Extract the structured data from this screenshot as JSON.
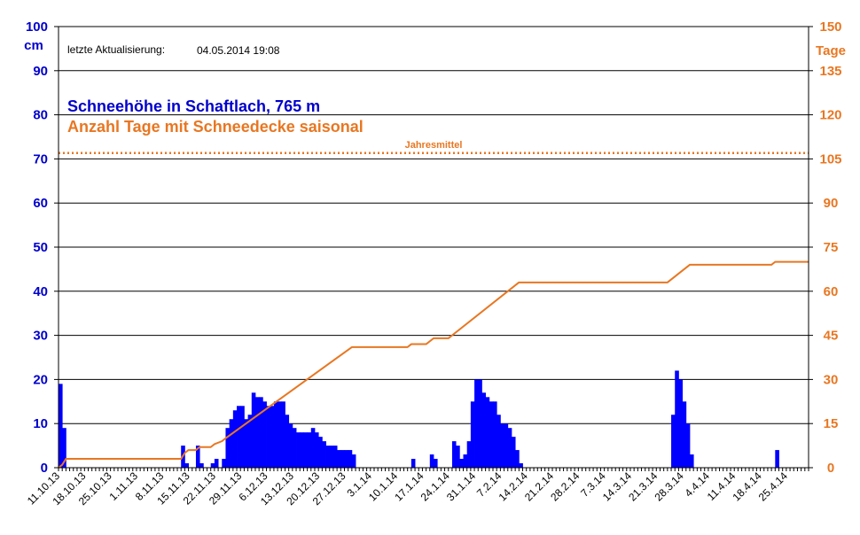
{
  "chart_data": {
    "type": "bar",
    "title": "Schneehöhe in Schaftlach, 765 m",
    "subtitle": "Anzahl Tage mit Schneedecke saisonal",
    "last_update_label": "letzte Aktualisierung:",
    "last_update_value": "04.05.2014 19:08",
    "ylabel_left": "cm",
    "ylabel_right": "Tage",
    "ylim_left": [
      0,
      100
    ],
    "ylim_right": [
      0,
      150
    ],
    "yticks_left": [
      0,
      10,
      20,
      30,
      40,
      50,
      60,
      70,
      80,
      90,
      100
    ],
    "yticks_right": [
      0,
      15,
      30,
      45,
      60,
      75,
      90,
      105,
      120,
      135,
      150
    ],
    "x_start": "11.10.13",
    "x_end": "01.05.14",
    "x_tick_labels": [
      "11.10.13",
      "18.10.13",
      "25.10.13",
      "1.11.13",
      "8.11.13",
      "15.11.13",
      "22.11.13",
      "29.11.13",
      "6.12.13",
      "13.12.13",
      "20.12.13",
      "27.12.13",
      "3.1.14",
      "10.1.14",
      "17.1.14",
      "24.1.14",
      "31.1.14",
      "7.2.14",
      "14.2.14",
      "21.2.14",
      "28.2.14",
      "7.3.14",
      "14.3.14",
      "21.3.14",
      "28.3.14",
      "4.4.14",
      "11.4.14",
      "18.4.14",
      "25.4.14"
    ],
    "grid": true,
    "series": [
      {
        "name": "Schneehöhe in Schaftlach, 765 m",
        "type": "bar",
        "axis": "left",
        "unit": "cm",
        "color": "#0000ff",
        "points": [
          [
            "11.10.13",
            19
          ],
          [
            "12.10.13",
            9
          ],
          [
            "13.11.13",
            5
          ],
          [
            "14.11.13",
            1
          ],
          [
            "17.11.13",
            5
          ],
          [
            "18.11.13",
            1
          ],
          [
            "21.11.13",
            1
          ],
          [
            "22.11.13",
            2
          ],
          [
            "24.11.13",
            2
          ],
          [
            "25.11.13",
            9
          ],
          [
            "26.11.13",
            11
          ],
          [
            "27.11.13",
            13
          ],
          [
            "28.11.13",
            14
          ],
          [
            "29.11.13",
            14
          ],
          [
            "30.11.13",
            11
          ],
          [
            "1.12.13",
            12
          ],
          [
            "2.12.13",
            17
          ],
          [
            "3.12.13",
            16
          ],
          [
            "4.12.13",
            16
          ],
          [
            "5.12.13",
            15
          ],
          [
            "6.12.13",
            14
          ],
          [
            "7.12.13",
            14
          ],
          [
            "8.12.13",
            15
          ],
          [
            "9.12.13",
            15
          ],
          [
            "10.12.13",
            15
          ],
          [
            "11.12.13",
            12
          ],
          [
            "12.12.13",
            10
          ],
          [
            "13.12.13",
            9
          ],
          [
            "14.12.13",
            8
          ],
          [
            "15.12.13",
            8
          ],
          [
            "16.12.13",
            8
          ],
          [
            "17.12.13",
            8
          ],
          [
            "18.12.13",
            9
          ],
          [
            "19.12.13",
            8
          ],
          [
            "20.12.13",
            7
          ],
          [
            "21.12.13",
            6
          ],
          [
            "22.12.13",
            5
          ],
          [
            "23.12.13",
            5
          ],
          [
            "24.12.13",
            5
          ],
          [
            "25.12.13",
            4
          ],
          [
            "26.12.13",
            4
          ],
          [
            "27.12.13",
            4
          ],
          [
            "28.12.13",
            4
          ],
          [
            "29.12.13",
            3
          ],
          [
            "14.1.14",
            2
          ],
          [
            "19.1.14",
            3
          ],
          [
            "20.1.14",
            2
          ],
          [
            "25.1.14",
            6
          ],
          [
            "26.1.14",
            5
          ],
          [
            "27.1.14",
            2
          ],
          [
            "28.1.14",
            3
          ],
          [
            "29.1.14",
            6
          ],
          [
            "30.1.14",
            15
          ],
          [
            "31.1.14",
            20
          ],
          [
            "1.2.14",
            20
          ],
          [
            "2.2.14",
            17
          ],
          [
            "3.2.14",
            16
          ],
          [
            "4.2.14",
            15
          ],
          [
            "5.2.14",
            15
          ],
          [
            "6.2.14",
            12
          ],
          [
            "7.2.14",
            10
          ],
          [
            "8.2.14",
            10
          ],
          [
            "9.2.14",
            9
          ],
          [
            "10.2.14",
            7
          ],
          [
            "11.2.14",
            4
          ],
          [
            "12.2.14",
            1
          ],
          [
            "25.3.14",
            12
          ],
          [
            "26.3.14",
            22
          ],
          [
            "27.3.14",
            20
          ],
          [
            "28.3.14",
            15
          ],
          [
            "29.3.14",
            10
          ],
          [
            "30.3.14",
            3
          ],
          [
            "22.4.14",
            4
          ]
        ]
      },
      {
        "name": "Anzahl Tage mit Schneedecke saisonal",
        "type": "line",
        "axis": "right",
        "unit": "Tage",
        "color": "#e87722",
        "points": [
          [
            "11.10.13",
            0
          ],
          [
            "12.10.13",
            1
          ],
          [
            "13.10.13",
            3
          ],
          [
            "13.11.13",
            3
          ],
          [
            "14.11.13",
            5
          ],
          [
            "15.11.13",
            6
          ],
          [
            "17.11.13",
            6
          ],
          [
            "18.11.13",
            7
          ],
          [
            "21.11.13",
            7
          ],
          [
            "22.11.13",
            8
          ],
          [
            "24.11.13",
            9
          ],
          [
            "25.11.13",
            10
          ],
          [
            "29.12.13",
            41
          ],
          [
            "13.1.14",
            41
          ],
          [
            "14.1.14",
            42
          ],
          [
            "18.1.14",
            42
          ],
          [
            "19.1.14",
            43
          ],
          [
            "20.1.14",
            44
          ],
          [
            "24.1.14",
            44
          ],
          [
            "12.2.14",
            63
          ],
          [
            "24.3.14",
            63
          ],
          [
            "30.3.14",
            69
          ],
          [
            "21.4.14",
            69
          ],
          [
            "22.4.14",
            70
          ],
          [
            "1.5.14",
            70
          ]
        ]
      }
    ],
    "reference_lines": [
      {
        "label": "Jahresmittel",
        "axis": "right",
        "value": 107,
        "color": "#e87722",
        "style": "dotted"
      }
    ]
  }
}
